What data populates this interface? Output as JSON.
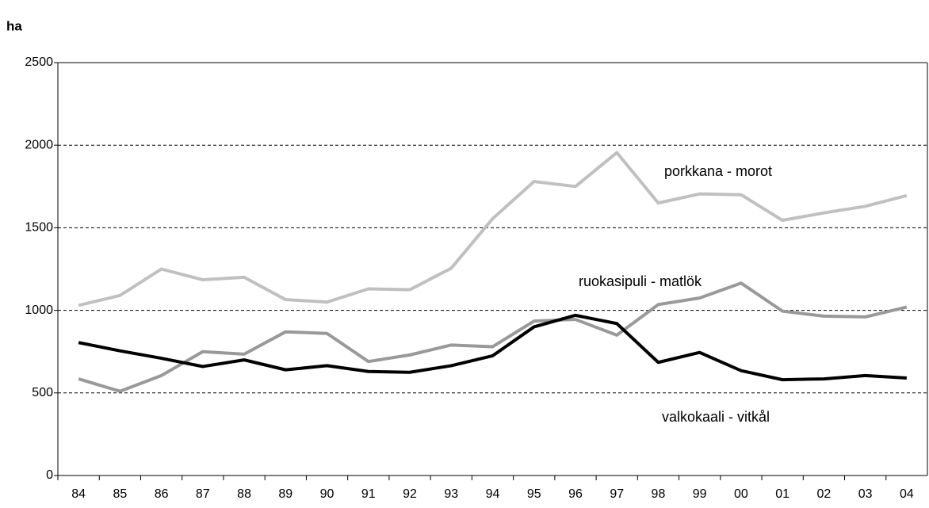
{
  "chart_data": {
    "type": "line",
    "y_label": "ha",
    "categories": [
      "84",
      "85",
      "86",
      "87",
      "88",
      "89",
      "90",
      "91",
      "92",
      "93",
      "94",
      "95",
      "96",
      "97",
      "98",
      "99",
      "00",
      "01",
      "02",
      "03",
      "04"
    ],
    "ylim": [
      0,
      2500
    ],
    "yticks": [
      0,
      500,
      1000,
      1500,
      2000,
      2500
    ],
    "grid": true,
    "series": [
      {
        "name": "porkkana - morot",
        "color": "#c0c0c0",
        "values": [
          1030,
          1090,
          1250,
          1185,
          1200,
          1065,
          1050,
          1130,
          1125,
          1255,
          1555,
          1780,
          1750,
          1955,
          1650,
          1705,
          1700,
          1545,
          1590,
          1630,
          1695
        ]
      },
      {
        "name": "ruokasipuli - matlök",
        "color": "#999999",
        "values": [
          585,
          510,
          605,
          750,
          735,
          870,
          860,
          690,
          730,
          790,
          780,
          935,
          945,
          850,
          1035,
          1075,
          1165,
          995,
          965,
          960,
          1020
        ]
      },
      {
        "name": "valkokaali - vitkål",
        "color": "#000000",
        "values": [
          805,
          755,
          710,
          660,
          700,
          640,
          665,
          630,
          625,
          665,
          725,
          900,
          970,
          920,
          685,
          745,
          635,
          580,
          585,
          605,
          590
        ]
      }
    ]
  }
}
